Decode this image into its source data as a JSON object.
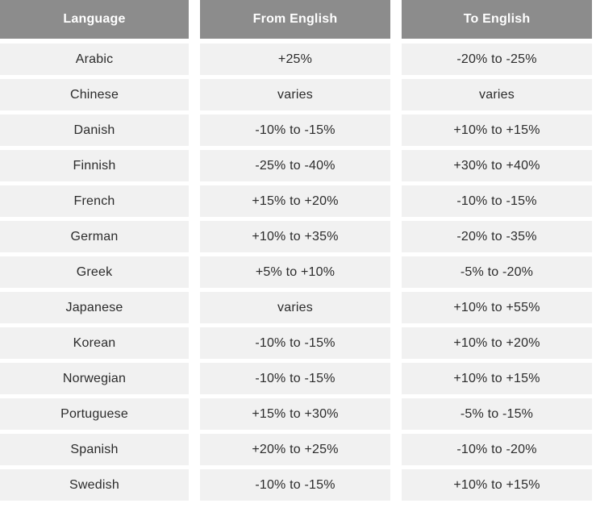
{
  "table": {
    "headers": [
      "Language",
      "From English",
      "To English"
    ],
    "rows": [
      [
        "Arabic",
        "+25%",
        "-20% to -25%"
      ],
      [
        "Chinese",
        "varies",
        "varies"
      ],
      [
        "Danish",
        "-10% to -15%",
        "+10% to +15%"
      ],
      [
        "Finnish",
        "-25% to -40%",
        "+30% to +40%"
      ],
      [
        "French",
        "+15% to +20%",
        "-10% to -15%"
      ],
      [
        "German",
        "+10% to +35%",
        "-20% to -35%"
      ],
      [
        "Greek",
        "+5% to +10%",
        "-5% to -20%"
      ],
      [
        "Japanese",
        "varies",
        "+10% to +55%"
      ],
      [
        "Korean",
        "-10% to -15%",
        "+10% to +20%"
      ],
      [
        "Norwegian",
        "-10% to -15%",
        "+10% to +15%"
      ],
      [
        "Portuguese",
        "+15% to +30%",
        "-5% to -15%"
      ],
      [
        "Spanish",
        "+20% to +25%",
        "-10% to -20%"
      ],
      [
        "Swedish",
        "-10% to -15%",
        "+10% to +15%"
      ]
    ]
  }
}
